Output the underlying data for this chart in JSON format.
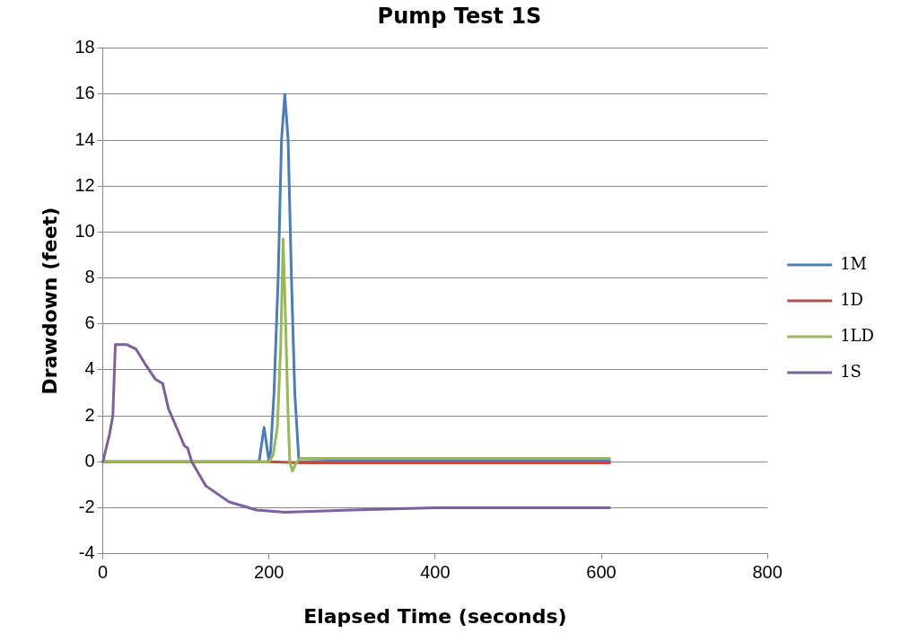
{
  "chart_data": {
    "type": "line",
    "title": "Pump Test 1S",
    "xlabel": "Elapsed Time (seconds)",
    "ylabel": "Drawdown (feet)",
    "xlim": [
      0,
      800
    ],
    "xticks": [
      0,
      200,
      400,
      600,
      800
    ],
    "ylim": [
      -4,
      18
    ],
    "yticks": [
      -4,
      -2,
      0,
      2,
      4,
      6,
      8,
      10,
      12,
      14,
      16,
      18
    ],
    "grid": "y",
    "legend": "right",
    "marker": "none",
    "line_style": "solid",
    "series": [
      {
        "name": "1M",
        "color": "#4a7ebb",
        "x": [
          0,
          100,
          188,
          194,
          200,
          202,
          206,
          211,
          215,
          219,
          223,
          227,
          231,
          236,
          300,
          400,
          500,
          610
        ],
        "values": [
          0,
          0,
          0,
          1.5,
          0,
          0.5,
          3,
          8,
          14,
          16,
          14,
          8,
          3,
          0,
          0.05,
          0.05,
          0.05,
          0.05
        ]
      },
      {
        "name": "1D",
        "color": "#be4b48",
        "x": [
          0,
          200,
          240,
          400,
          610
        ],
        "values": [
          0,
          0,
          -0.05,
          -0.05,
          -0.05
        ]
      },
      {
        "name": "1LD",
        "color": "#98b954",
        "x": [
          0,
          100,
          200,
          205,
          210,
          214,
          217,
          220,
          223,
          225,
          228,
          232,
          237,
          300,
          400,
          500,
          610
        ],
        "values": [
          0,
          0,
          0,
          0.3,
          1.5,
          5,
          9.7,
          6,
          2,
          0,
          -0.4,
          -0.1,
          0.15,
          0.15,
          0.15,
          0.15,
          0.15
        ]
      },
      {
        "name": "1S",
        "color": "#7d60a0",
        "x": [
          0,
          8,
          12,
          15,
          29,
          40,
          51,
          63,
          72,
          79,
          91,
          98,
          102,
          107,
          124,
          152,
          185,
          219,
          300,
          400,
          500,
          610
        ],
        "values": [
          0,
          1.2,
          2,
          5.1,
          5.1,
          4.9,
          4.25,
          3.6,
          3.4,
          2.3,
          1.3,
          0.7,
          0.6,
          0,
          -1.05,
          -1.75,
          -2.1,
          -2.2,
          -2.1,
          -2.0,
          -2.0,
          -2.0
        ]
      }
    ]
  }
}
